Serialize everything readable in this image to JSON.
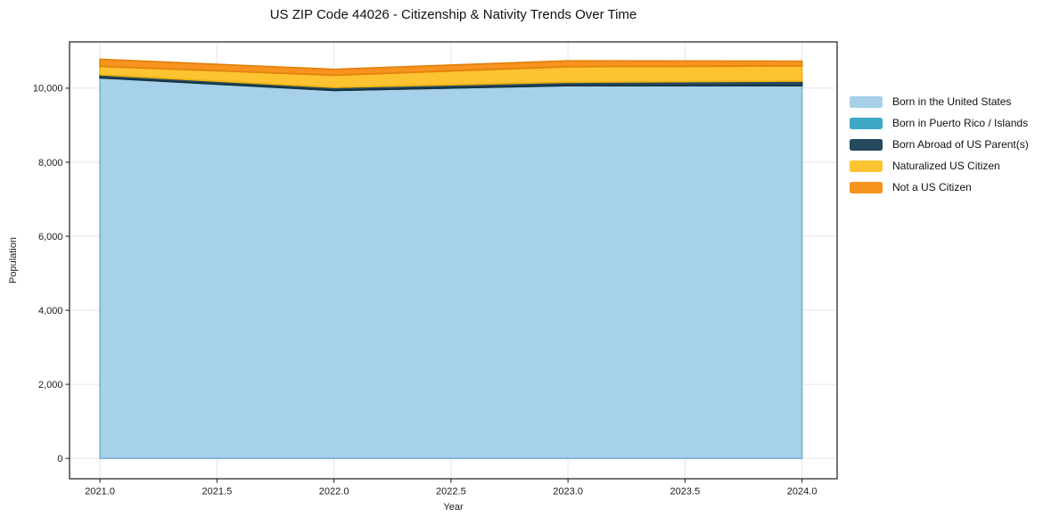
{
  "chart_data": {
    "type": "area",
    "stacked": true,
    "title": "US ZIP Code 44026 - Citizenship & Nativity Trends Over Time",
    "xlabel": "Year",
    "ylabel": "Population",
    "x": [
      2021,
      2022,
      2023,
      2024
    ],
    "series": [
      {
        "name": "Born in the United States",
        "color": "#a6d1e8",
        "edge": "#7db5d5",
        "values": [
          10280,
          9940,
          10070,
          10070
        ]
      },
      {
        "name": "Born in Puerto Rico / Islands",
        "color": "#3fa8c6",
        "edge": "#2d93b3",
        "values": [
          0,
          0,
          0,
          0
        ]
      },
      {
        "name": "Born Abroad of US Parent(s)",
        "color": "#254a5e",
        "edge": "#16303f",
        "values": [
          80,
          80,
          90,
          120
        ]
      },
      {
        "name": "Naturalized US Citizen",
        "color": "#fdc330",
        "edge": "#edb112",
        "values": [
          230,
          330,
          420,
          410
        ]
      },
      {
        "name": "Not a US Citizen",
        "color": "#f7931e",
        "edge": "#e2820d",
        "values": [
          190,
          160,
          160,
          130
        ]
      }
    ],
    "xticks": [
      2021.0,
      2021.5,
      2022.0,
      2022.5,
      2023.0,
      2023.5,
      2024.0
    ],
    "xtick_labels": [
      "2021.0",
      "2021.5",
      "2022.0",
      "2022.5",
      "2023.0",
      "2023.5",
      "2024.0"
    ],
    "yticks": [
      0,
      2000,
      4000,
      6000,
      8000,
      10000
    ],
    "ytick_labels": [
      "0",
      "2,000",
      "4,000",
      "6,000",
      "8,000",
      "10,000"
    ],
    "xlim": [
      2020.87,
      2024.15
    ],
    "ylim": [
      -550,
      11250
    ],
    "grid": true,
    "grid_color": "#e6e6e6",
    "axis_color": "#1a1a1a",
    "legend_position": "right-outside"
  }
}
